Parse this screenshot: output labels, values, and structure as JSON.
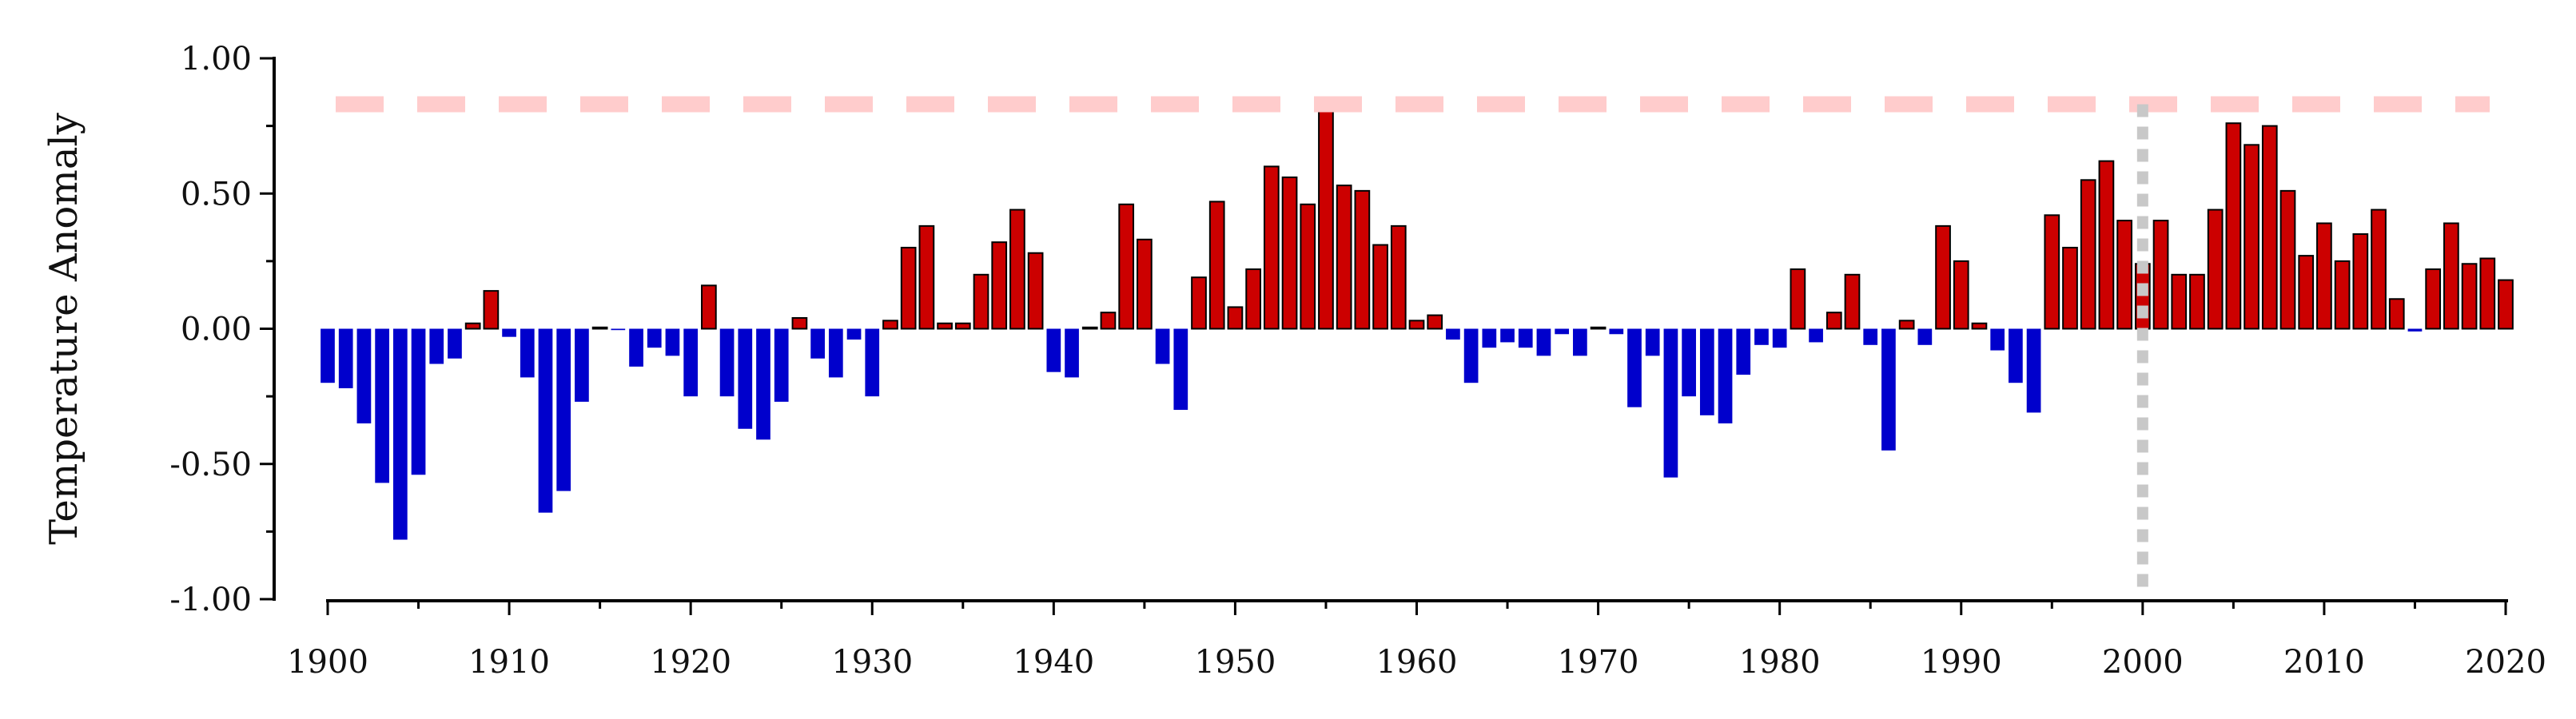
{
  "chart_data": {
    "type": "bar",
    "title": "",
    "xlabel": "",
    "ylabel": "Temperature Anomaly",
    "ylim": [
      -1.0,
      1.0
    ],
    "xlim": [
      1899.5,
      2020.5
    ],
    "yticks": [
      {
        "value": -1.0,
        "label": "-1.00"
      },
      {
        "value": -0.5,
        "label": "-0.50"
      },
      {
        "value": 0.0,
        "label": "0.00"
      },
      {
        "value": 0.5,
        "label": "0.50"
      },
      {
        "value": 1.0,
        "label": "1.00"
      }
    ],
    "xticks": [
      {
        "value": 1900,
        "label": "1900"
      },
      {
        "value": 1910,
        "label": "1910"
      },
      {
        "value": 1920,
        "label": "1920"
      },
      {
        "value": 1930,
        "label": "1930"
      },
      {
        "value": 1940,
        "label": "1940"
      },
      {
        "value": 1950,
        "label": "1950"
      },
      {
        "value": 1960,
        "label": "1960"
      },
      {
        "value": 1970,
        "label": "1970"
      },
      {
        "value": 1980,
        "label": "1980"
      },
      {
        "value": 1990,
        "label": "1990"
      },
      {
        "value": 2000,
        "label": "2000"
      },
      {
        "value": 2010,
        "label": "2010"
      },
      {
        "value": 2020,
        "label": "2020"
      }
    ],
    "grid": false,
    "legend": "none",
    "colors": {
      "positive": "#cc0000",
      "negative": "#0000cc",
      "bar_edge_positive": "#000000",
      "reference_line": "#ffcccc",
      "marker_line": "#c8c8c8"
    },
    "reference_line": {
      "y": 0.83,
      "style": "dashed"
    },
    "marker_line": {
      "x": 2000,
      "style": "dotted"
    },
    "x": [
      1900,
      1901,
      1902,
      1903,
      1904,
      1905,
      1906,
      1907,
      1908,
      1909,
      1910,
      1911,
      1912,
      1913,
      1914,
      1915,
      1916,
      1917,
      1918,
      1919,
      1920,
      1921,
      1922,
      1923,
      1924,
      1925,
      1926,
      1927,
      1928,
      1929,
      1930,
      1931,
      1932,
      1933,
      1934,
      1935,
      1936,
      1937,
      1938,
      1939,
      1940,
      1941,
      1942,
      1943,
      1944,
      1945,
      1946,
      1947,
      1948,
      1949,
      1950,
      1951,
      1952,
      1953,
      1954,
      1955,
      1956,
      1957,
      1958,
      1959,
      1960,
      1961,
      1962,
      1963,
      1964,
      1965,
      1966,
      1967,
      1968,
      1969,
      1970,
      1971,
      1972,
      1973,
      1974,
      1975,
      1976,
      1977,
      1978,
      1979,
      1980,
      1981,
      1982,
      1983,
      1984,
      1985,
      1986,
      1987,
      1988,
      1989,
      1990,
      1991,
      1992,
      1993,
      1994,
      1995,
      1996,
      1997,
      1998,
      1999,
      2000,
      2001,
      2002,
      2003,
      2004,
      2005,
      2006,
      2007,
      2008,
      2009,
      2010,
      2011,
      2012,
      2013,
      2014,
      2015,
      2016,
      2017,
      2018,
      2019,
      2020
    ],
    "values": [
      -0.2,
      -0.22,
      -0.35,
      -0.57,
      -0.78,
      -0.54,
      -0.13,
      -0.11,
      0.02,
      0.14,
      -0.03,
      -0.18,
      -0.68,
      -0.6,
      -0.27,
      0.005,
      -0.005,
      -0.14,
      -0.07,
      -0.1,
      -0.25,
      0.16,
      -0.25,
      -0.37,
      -0.41,
      -0.27,
      0.04,
      -0.11,
      -0.18,
      -0.04,
      -0.25,
      0.03,
      0.3,
      0.38,
      0.02,
      0.02,
      0.2,
      0.32,
      0.44,
      0.28,
      -0.16,
      -0.18,
      0.005,
      0.06,
      0.46,
      0.33,
      -0.13,
      -0.3,
      0.19,
      0.47,
      0.08,
      0.22,
      0.6,
      0.56,
      0.46,
      0.83,
      0.53,
      0.51,
      0.31,
      0.38,
      0.03,
      0.05,
      -0.04,
      -0.2,
      -0.07,
      -0.05,
      -0.07,
      -0.1,
      -0.02,
      -0.1,
      0.005,
      -0.02,
      -0.29,
      -0.1,
      -0.55,
      -0.25,
      -0.32,
      -0.35,
      -0.17,
      -0.06,
      -0.07,
      0.22,
      -0.05,
      0.06,
      0.2,
      -0.06,
      -0.45,
      0.03,
      -0.06,
      0.38,
      0.25,
      0.02,
      -0.08,
      -0.2,
      -0.31,
      0.42,
      0.3,
      0.55,
      0.62,
      0.4,
      0.24,
      0.4,
      0.2,
      0.2,
      0.44,
      0.76,
      0.68,
      0.75,
      0.51,
      0.27,
      0.39,
      0.25,
      0.35,
      0.44,
      0.11,
      -0.01,
      0.22,
      0.39,
      0.24,
      0.26,
      0.18
    ]
  }
}
